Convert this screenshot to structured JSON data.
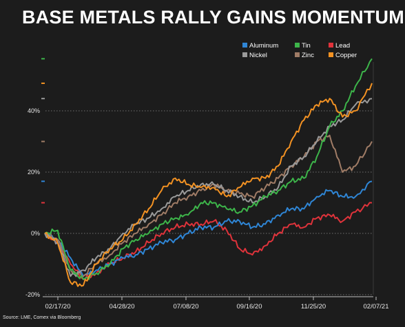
{
  "chart_data": {
    "type": "line",
    "title": "BASE METALS RALLY GAINS MOMENTUM",
    "source": "Source: LME, Comex via Bloomberg",
    "xlabel": "",
    "ylabel": "",
    "x_tick_labels": [
      "02/17/20",
      "04/28/20",
      "07/08/20",
      "09/16/20",
      "11/25/20",
      "02/07/21"
    ],
    "y_tick_labels": [
      "-20%",
      "0%",
      "20%",
      "40%"
    ],
    "y_ticks": [
      -20,
      0,
      20,
      40
    ],
    "ylim": [
      -20,
      60
    ],
    "grid": true,
    "legend_position": "top-right",
    "x": [
      "2020-02-17",
      "2020-03-02",
      "2020-03-16",
      "2020-03-30",
      "2020-04-13",
      "2020-04-28",
      "2020-05-12",
      "2020-05-26",
      "2020-06-09",
      "2020-06-23",
      "2020-07-08",
      "2020-07-22",
      "2020-08-05",
      "2020-08-19",
      "2020-09-02",
      "2020-09-16",
      "2020-09-30",
      "2020-10-14",
      "2020-10-28",
      "2020-11-11",
      "2020-11-25",
      "2020-12-09",
      "2020-12-23",
      "2021-01-06",
      "2021-01-20",
      "2021-02-07"
    ],
    "series": [
      {
        "name": "Aluminum",
        "color": "#2f86d6",
        "values": [
          0,
          -2,
          -8,
          -14,
          -12,
          -10,
          -8,
          -7,
          -5,
          -3,
          -2,
          0,
          2,
          2,
          4,
          4,
          2,
          3,
          6,
          8,
          8,
          12,
          14,
          12,
          12,
          17
        ]
      },
      {
        "name": "Tin",
        "color": "#3db54a",
        "values": [
          0,
          1,
          -12,
          -15,
          -13,
          -10,
          -5,
          -2,
          0,
          3,
          5,
          6,
          10,
          10,
          8,
          7,
          9,
          12,
          14,
          17,
          18,
          25,
          35,
          40,
          48,
          57
        ]
      },
      {
        "name": "Lead",
        "color": "#e0333b",
        "values": [
          0,
          -3,
          -10,
          -15,
          -13,
          -10,
          -8,
          -6,
          -3,
          0,
          2,
          3,
          3,
          4,
          1,
          -5,
          -7,
          -4,
          0,
          3,
          2,
          5,
          6,
          4,
          7,
          10
        ]
      },
      {
        "name": "Nickel",
        "color": "#9a9a9a",
        "values": [
          0,
          -3,
          -14,
          -12,
          -8,
          -5,
          0,
          3,
          5,
          8,
          12,
          14,
          16,
          16,
          14,
          12,
          10,
          12,
          15,
          22,
          25,
          30,
          35,
          37,
          42,
          44
        ]
      },
      {
        "name": "Zinc",
        "color": "#a07c66",
        "values": [
          0,
          -2,
          -12,
          -14,
          -10,
          -7,
          -3,
          0,
          3,
          6,
          10,
          12,
          14,
          16,
          14,
          13,
          12,
          15,
          18,
          22,
          25,
          30,
          32,
          20,
          22,
          30
        ]
      },
      {
        "name": "Copper",
        "color": "#f39223",
        "values": [
          0,
          -3,
          -16,
          -17,
          -10,
          -5,
          -2,
          3,
          8,
          14,
          18,
          16,
          15,
          15,
          12,
          15,
          18,
          18,
          22,
          30,
          37,
          42,
          44,
          38,
          40,
          49
        ]
      }
    ]
  }
}
